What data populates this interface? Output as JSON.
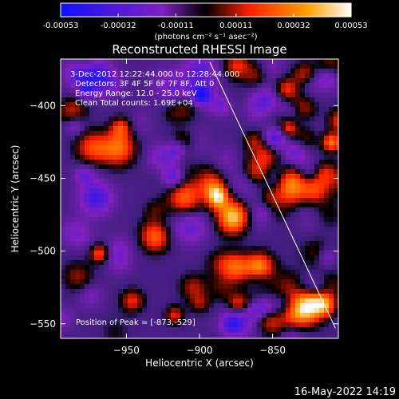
{
  "chart_data": {
    "type": "heatmap",
    "title": "Reconstructed RHESSI Image",
    "xlabel": "Heliocentric X (arcsec)",
    "ylabel": "Heliocentric Y (arcsec)",
    "xlim": [
      -995,
      -805
    ],
    "ylim": [
      -560,
      -368
    ],
    "x_ticks": [
      -950,
      -900,
      -850
    ],
    "y_ticks": [
      -550,
      -500,
      -450,
      -400
    ],
    "colorbar": {
      "ticks": [
        -0.00053,
        -0.00032,
        -0.00011,
        0.00011,
        0.00032,
        0.00053
      ],
      "range": [
        -0.00053,
        0.00053
      ],
      "unit_label": "(photons cm⁻² s⁻¹ asec⁻²)",
      "colors": [
        "#1010ff",
        "#8020c0",
        "#000000",
        "#ff2000",
        "#ffa000",
        "#ffffff"
      ]
    },
    "annotations": {
      "time_range": "3-Dec-2012 12:22:44.000 to 12:28:44.000",
      "detectors": "Detectors: 3F 4F 5F 6F 7F 8F, Att 0",
      "energy": "Energy Range: 12.0 - 25.0 keV",
      "clean": "Clean     Total counts: 1.69E+04",
      "peak": "Position of Peak = [-873,-529]"
    },
    "peak": {
      "x": -873,
      "y": -529
    },
    "limb_line": {
      "start": [
        -893,
        -370
      ],
      "end": [
        -807,
        -553
      ]
    }
  },
  "footer": {
    "date": "16-May-2022 14:19"
  }
}
